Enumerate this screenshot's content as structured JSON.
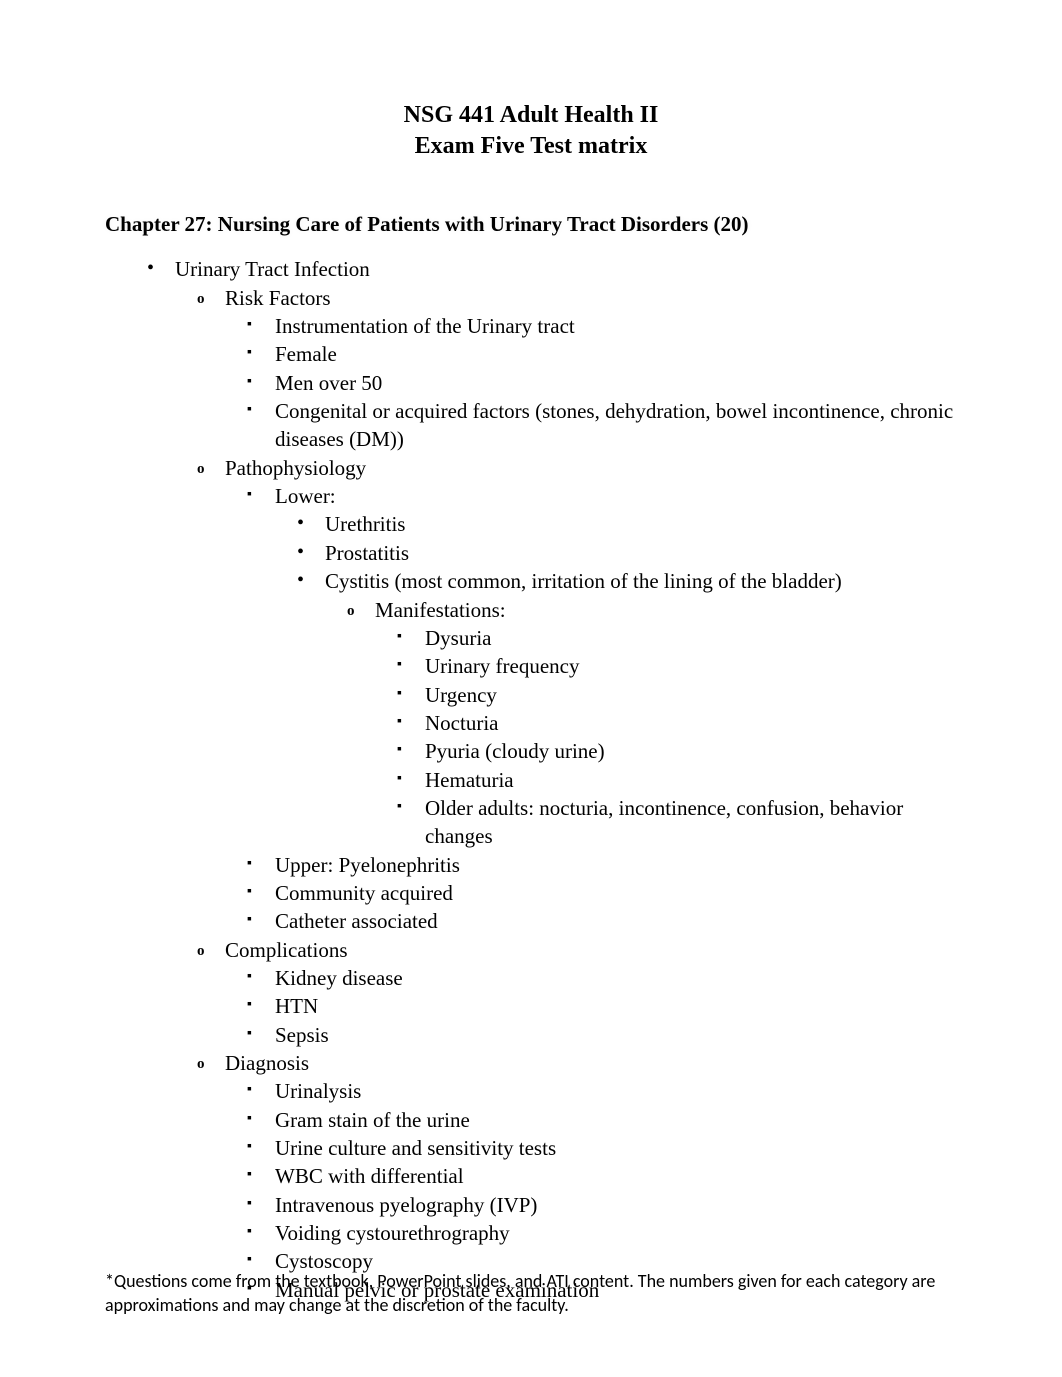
{
  "title_line1": "NSG 441 Adult Health II",
  "title_line2": "Exam Five Test matrix",
  "chapter_heading": "Chapter 27: Nursing Care of Patients with Urinary Tract Disorders (20)",
  "outline": {
    "topic": "Urinary Tract Infection",
    "risk_factors": {
      "label": "Risk Factors",
      "items": [
        "Instrumentation of the Urinary tract",
        "Female",
        "Men over 50",
        "Congenital or acquired factors (stones, dehydration, bowel incontinence, chronic diseases (DM))"
      ]
    },
    "pathophysiology": {
      "label": "Pathophysiology",
      "lower": {
        "label": "Lower:",
        "items": {
          "urethritis": "Urethritis",
          "prostatitis": "Prostatitis",
          "cystitis": {
            "label": "Cystitis (most common, irritation of the lining of the bladder)",
            "manifestations_label": "Manifestations:",
            "manifestations": [
              "Dysuria",
              "Urinary frequency",
              "Urgency",
              "Nocturia",
              "Pyuria (cloudy urine)",
              "Hematuria",
              "Older adults: nocturia, incontinence, confusion, behavior changes"
            ]
          }
        }
      },
      "upper": "Upper: Pyelonephritis",
      "community": "Community acquired",
      "catheter": "Catheter associated"
    },
    "complications": {
      "label": "Complications",
      "items": [
        "Kidney disease",
        "HTN",
        "Sepsis"
      ]
    },
    "diagnosis": {
      "label": "Diagnosis",
      "items": [
        "Urinalysis",
        "Gram stain of the urine",
        "Urine culture and sensitivity tests",
        "WBC with differential",
        "Intravenous pyelography (IVP)",
        "Voiding cystourethrography",
        "Cystoscopy",
        "Manual pelvic or prostate examination"
      ]
    }
  },
  "footnote": "*Questions come from the textbook, PowerPoint slides, and ATI content.  The numbers given for each category are approximations and may change at the discretion of the faculty."
}
